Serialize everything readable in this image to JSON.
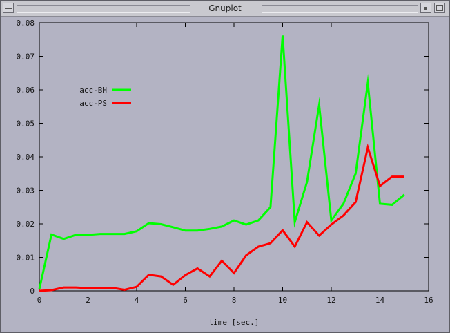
{
  "window": {
    "title": "Gnuplot"
  },
  "chart_data": {
    "type": "line",
    "xlabel": "time [sec.]",
    "ylabel": "",
    "xlim": [
      0,
      16
    ],
    "ylim": [
      0,
      0.08
    ],
    "xticks": [
      "0",
      "2",
      "4",
      "6",
      "8",
      "10",
      "12",
      "14",
      "16"
    ],
    "xtick_values": [
      0,
      2,
      4,
      6,
      8,
      10,
      12,
      14,
      16
    ],
    "yticks": [
      "0",
      "0.01",
      "0.02",
      "0.03",
      "0.04",
      "0.05",
      "0.06",
      "0.07",
      "0.08"
    ],
    "ytick_values": [
      0,
      0.01,
      0.02,
      0.03,
      0.04,
      0.05,
      0.06,
      0.07,
      0.08
    ],
    "grid": false,
    "legend_position": "upper-left",
    "series": [
      {
        "name": "acc-BH",
        "color": "#00ff00",
        "x": [
          0,
          0.5,
          1,
          1.5,
          2,
          2.5,
          3,
          3.5,
          4,
          4.5,
          5,
          5.5,
          6,
          6.5,
          7,
          7.5,
          8,
          8.5,
          9,
          9.5,
          10,
          10.5,
          11,
          11.5,
          12,
          12.5,
          13,
          13.5,
          14,
          14.5,
          15
        ],
        "y": [
          0.0005,
          0.0168,
          0.0155,
          0.0167,
          0.0167,
          0.017,
          0.017,
          0.017,
          0.0178,
          0.0202,
          0.0199,
          0.019,
          0.018,
          0.018,
          0.0185,
          0.0192,
          0.021,
          0.0198,
          0.021,
          0.025,
          0.0762,
          0.0205,
          0.0325,
          0.0555,
          0.021,
          0.026,
          0.035,
          0.0621,
          0.026,
          0.0257,
          0.0287
        ]
      },
      {
        "name": "acc-PS",
        "color": "#ff0000",
        "x": [
          0,
          0.5,
          1,
          1.5,
          2,
          2.5,
          3,
          3.5,
          4,
          4.5,
          5,
          5.5,
          6,
          6.5,
          7,
          7.5,
          8,
          8.5,
          9,
          9.5,
          10,
          10.5,
          11,
          11.5,
          12,
          12.5,
          13,
          13.5,
          14,
          14.5,
          15
        ],
        "y": [
          0,
          0.0002,
          0.001,
          0.001,
          0.0008,
          0.0008,
          0.0009,
          0.0003,
          0.0012,
          0.0048,
          0.0043,
          0.0018,
          0.0047,
          0.0067,
          0.0043,
          0.009,
          0.0053,
          0.0106,
          0.0132,
          0.0142,
          0.0181,
          0.0132,
          0.0205,
          0.0165,
          0.0198,
          0.0225,
          0.0265,
          0.0428,
          0.0313,
          0.0341,
          0.0341
        ]
      }
    ]
  }
}
